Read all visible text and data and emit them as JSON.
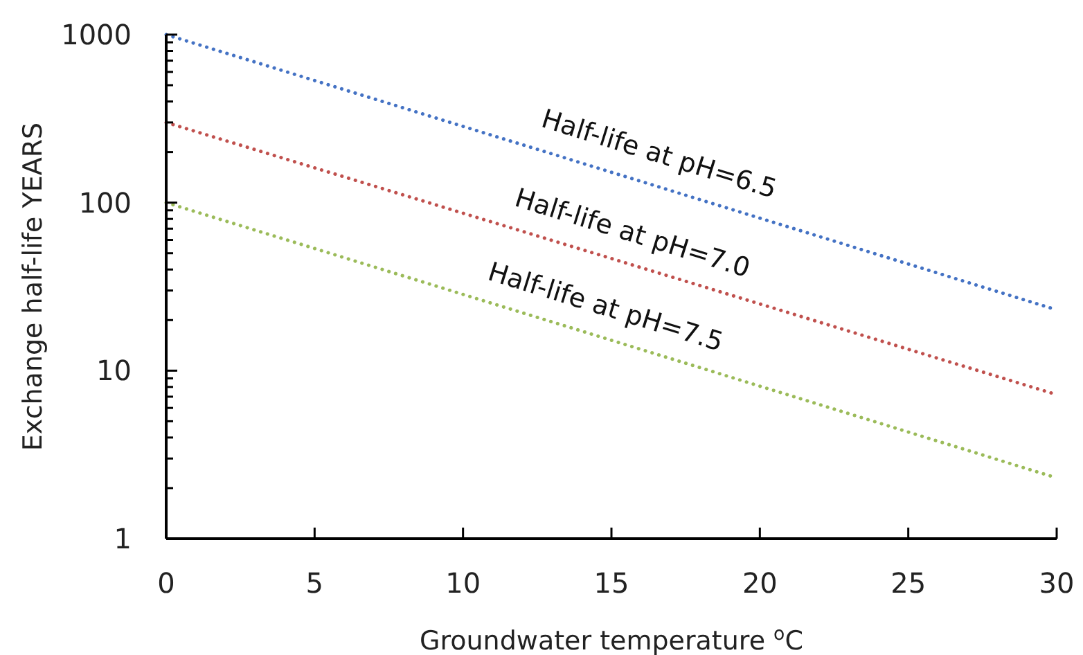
{
  "chart_data": {
    "type": "line",
    "xlabel": "Groundwater temperature $^{o}$C",
    "ylabel": "Exchange half-life YEARS",
    "x": [
      0,
      30
    ],
    "series": [
      {
        "color": "#4472c4",
        "values": [
          1000,
          23
        ]
      },
      {
        "color": "#c0504d",
        "values": [
          300,
          7.2
        ]
      },
      {
        "color": "#9bbb59",
        "values": [
          100,
          2.3
        ]
      }
    ],
    "annotations": [
      {
        "text": "Half-life at pH=6.5",
        "x": 16.3,
        "y": 130
      },
      {
        "text": "Half-life at pH=7.0",
        "x": 15.4,
        "y": 44
      },
      {
        "text": "Half-life at pH=7.5",
        "x": 14.5,
        "y": 16
      }
    ],
    "log": true,
    "grid": false,
    "marker": "none",
    "line_style": "dotted",
    "xlim": [
      0,
      30
    ],
    "xticks": [
      0,
      5,
      10,
      15,
      20,
      25,
      30
    ],
    "ylim": [
      1,
      1000
    ],
    "yticks": [
      1,
      {
        "value": 2,
        "label": null
      },
      {
        "value": 3,
        "label": null
      },
      {
        "value": 4,
        "label": null
      },
      {
        "value": 5,
        "label": null
      },
      {
        "value": 6,
        "label": null
      },
      {
        "value": 7,
        "label": null
      },
      {
        "value": 8,
        "label": null
      },
      {
        "value": 9,
        "label": null
      },
      10,
      {
        "value": 20,
        "label": null
      },
      {
        "value": 30,
        "label": null
      },
      {
        "value": 40,
        "label": null
      },
      {
        "value": 50,
        "label": null
      },
      {
        "value": 60,
        "label": null
      },
      {
        "value": 70,
        "label": null
      },
      {
        "value": 80,
        "label": null
      },
      {
        "value": 90,
        "label": null
      },
      100,
      {
        "value": 200,
        "label": null
      },
      {
        "value": 300,
        "label": null
      },
      {
        "value": 400,
        "label": null
      },
      {
        "value": 500,
        "label": null
      },
      {
        "value": 600,
        "label": null
      },
      {
        "value": 700,
        "label": null
      },
      {
        "value": 800,
        "label": null
      },
      {
        "value": 900,
        "label": null
      },
      1000
    ]
  }
}
